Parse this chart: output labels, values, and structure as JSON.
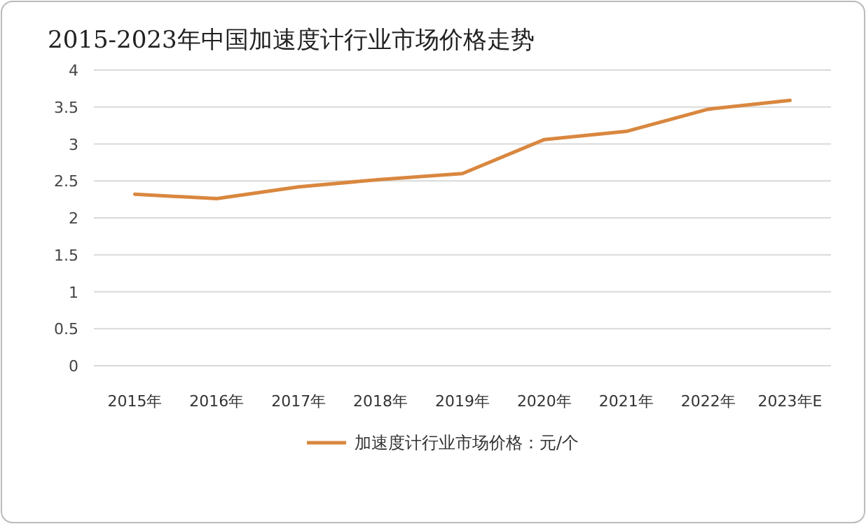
{
  "chart_data": {
    "type": "line",
    "title": "2015-2023年中国加速度计行业市场价格走势",
    "categories": [
      "2015年",
      "2016年",
      "2017年",
      "2018年",
      "2019年",
      "2020年",
      "2021年",
      "2022年",
      "2023年E"
    ],
    "series": [
      {
        "name": "加速度计行业市场价格：元/个",
        "color": "#d9873f",
        "values": [
          2.32,
          2.26,
          2.42,
          2.52,
          2.6,
          3.06,
          3.17,
          3.47,
          3.59
        ]
      }
    ],
    "ylim": [
      0,
      4
    ],
    "yticks": [
      0,
      0.5,
      1,
      1.5,
      2,
      2.5,
      3,
      3.5,
      4
    ],
    "grid": "y",
    "legend": "bottom",
    "marker": "none",
    "line_style": "solid"
  }
}
